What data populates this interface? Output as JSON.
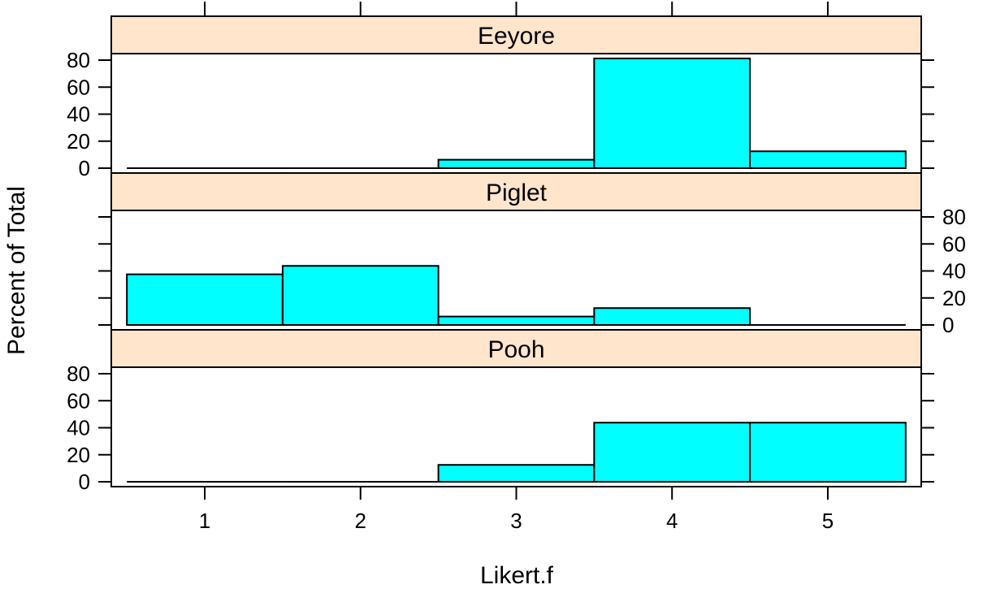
{
  "chart_data": {
    "type": "bar",
    "xlabel": "Likert.f",
    "ylabel": "Percent of Total",
    "categories": [
      "1",
      "2",
      "3",
      "4",
      "5"
    ],
    "ylim": [
      0,
      80
    ],
    "yticks": [
      "0",
      "20",
      "40",
      "60",
      "80"
    ],
    "grid": false,
    "panels": [
      {
        "name": "Eeyore",
        "values": [
          0,
          0,
          6.25,
          81.25,
          12.5
        ]
      },
      {
        "name": "Piglet",
        "values": [
          37.5,
          43.75,
          6.25,
          12.5,
          0
        ]
      },
      {
        "name": "Pooh",
        "values": [
          0,
          0,
          12.5,
          43.75,
          43.75
        ]
      }
    ],
    "colors": {
      "bar_fill": "#00ffff",
      "strip_fill": "#ffe5cc",
      "outline": "#000000"
    }
  }
}
